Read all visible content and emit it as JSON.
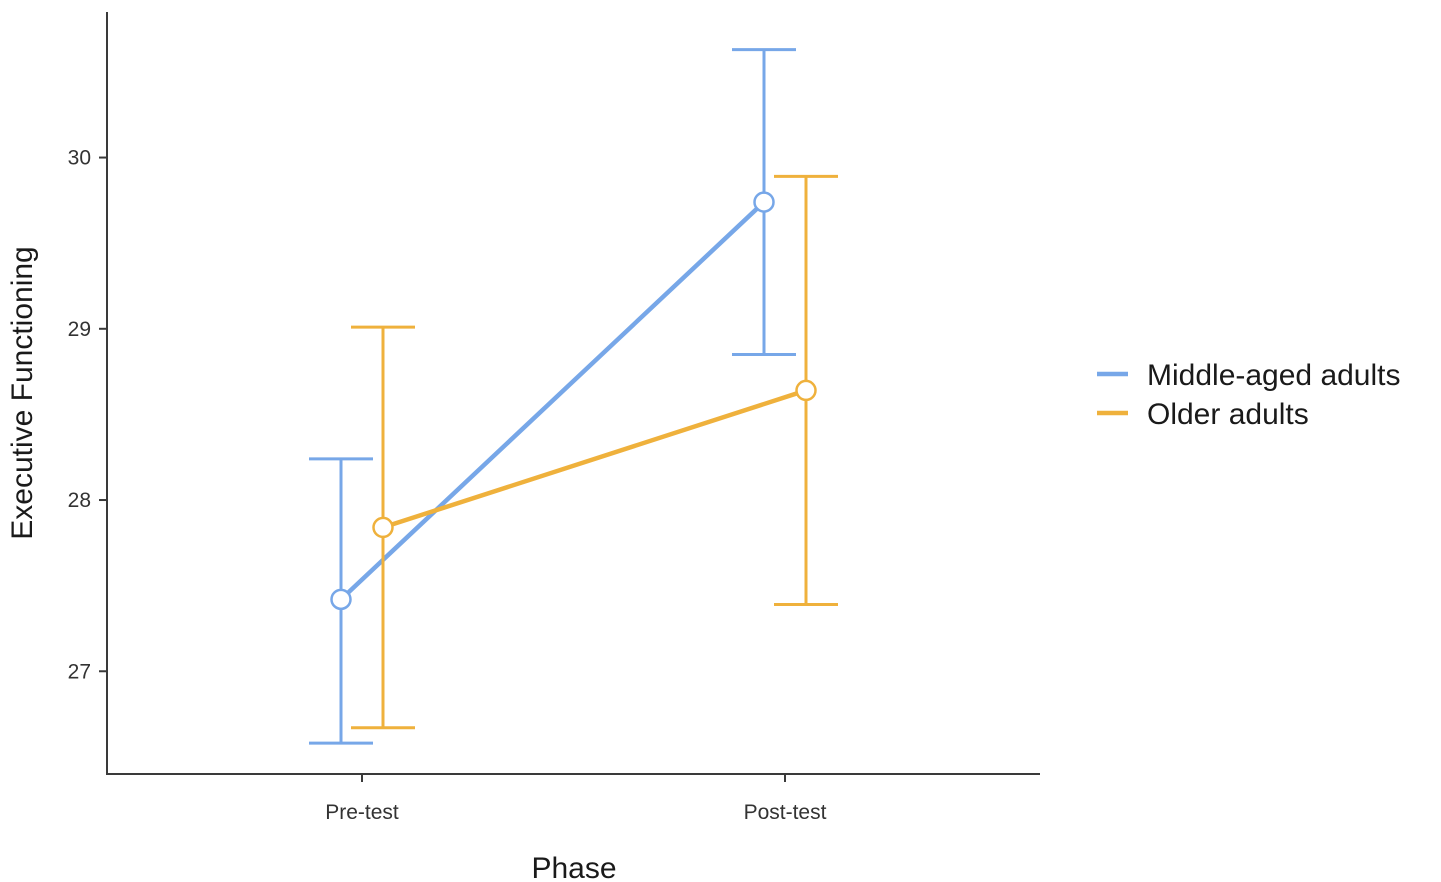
{
  "chart_data": {
    "type": "line",
    "title": "",
    "xlabel": "Phase",
    "ylabel": "Executive Functioning",
    "categories": [
      "Pre-test",
      "Post-test"
    ],
    "yticks": [
      27,
      28,
      29,
      30
    ],
    "ylim": [
      26.4,
      30.85
    ],
    "grid": false,
    "legend_position": "right",
    "series": [
      {
        "name": "Middle-aged adults",
        "color": "#77a7e8",
        "values": [
          27.42,
          29.74
        ],
        "error_low": [
          26.58,
          28.85
        ],
        "error_high": [
          28.24,
          30.63
        ]
      },
      {
        "name": "Older adults",
        "color": "#efb13c",
        "values": [
          27.84,
          28.64
        ],
        "error_low": [
          26.67,
          27.39
        ],
        "error_high": [
          29.01,
          29.89
        ]
      }
    ]
  }
}
